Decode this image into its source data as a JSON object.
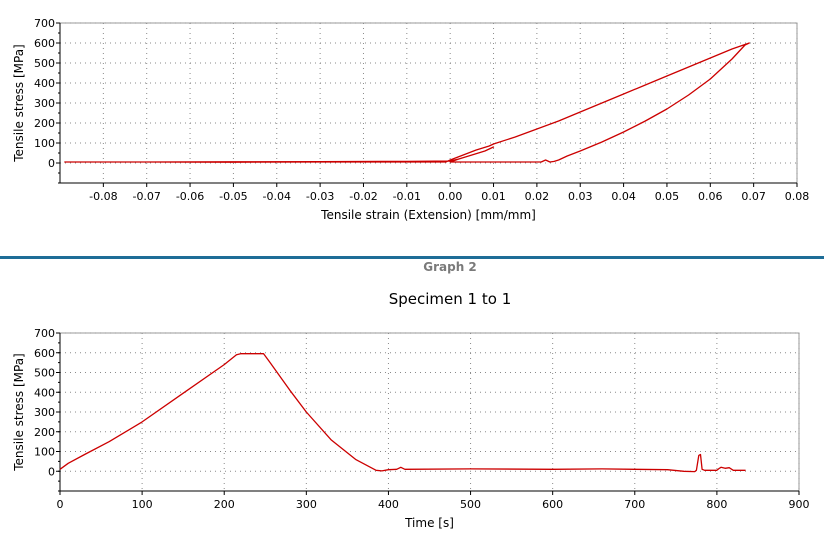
{
  "graph2": {
    "label": "Graph 2",
    "title": "Specimen 1 to 1"
  },
  "colors": {
    "series": "#cc0000",
    "divider": "#1e6d97",
    "grid": "#8a8a8a"
  },
  "chart_data": [
    {
      "type": "line",
      "title": "",
      "xlabel": "Tensile strain (Extension) [mm/mm]",
      "ylabel": "Tensile stress [MPa]",
      "xlim": [
        -0.09,
        0.08
      ],
      "ylim": [
        -100,
        700
      ],
      "xticks": [
        -0.08,
        -0.07,
        -0.06,
        -0.05,
        -0.04,
        -0.03,
        -0.02,
        -0.01,
        0.0,
        0.01,
        0.02,
        0.03,
        0.04,
        0.05,
        0.06,
        0.07,
        0.08
      ],
      "xtick_labels": [
        "-0.08",
        "-0.07",
        "-0.06",
        "-0.05",
        "-0.04",
        "-0.03",
        "-0.02",
        "-0.01",
        "0.00",
        "0.01",
        "0.02",
        "0.03",
        "0.04",
        "0.05",
        "0.06",
        "0.07",
        "0.08"
      ],
      "yticks": [
        0,
        100,
        200,
        300,
        400,
        500,
        600,
        700
      ],
      "ytick_labels": [
        "0",
        "100",
        "200",
        "300",
        "400",
        "500",
        "600",
        "700"
      ],
      "grid": true,
      "series": [
        {
          "x": [
            -0.089,
            -0.07,
            -0.05,
            -0.03,
            -0.01,
            -0.001,
            0.0,
            0.003,
            0.006,
            0.009,
            0.01,
            0.015,
            0.02,
            0.025,
            0.03,
            0.035,
            0.04,
            0.045,
            0.05,
            0.055,
            0.06,
            0.065,
            0.069,
            0.068,
            0.065,
            0.06,
            0.055,
            0.05,
            0.045,
            0.04,
            0.035,
            0.03,
            0.027,
            0.025,
            0.024,
            0.023,
            0.022,
            0.021,
            0.02,
            0.015,
            0.01,
            0.005,
            0.002,
            0.0,
            0.002,
            0.005,
            0.008,
            0.01,
            0.008,
            0.005,
            0.002,
            0.0,
            -0.01,
            -0.03,
            -0.05,
            -0.07,
            -0.089
          ],
          "y": [
            5,
            5,
            4,
            5,
            5,
            5,
            15,
            40,
            65,
            85,
            95,
            130,
            170,
            210,
            255,
            300,
            345,
            390,
            435,
            480,
            525,
            570,
            600,
            590,
            520,
            420,
            340,
            270,
            210,
            155,
            105,
            60,
            35,
            15,
            8,
            5,
            15,
            5,
            5,
            5,
            5,
            5,
            5,
            5,
            20,
            40,
            60,
            80,
            60,
            40,
            20,
            10,
            8,
            7,
            6,
            5,
            5
          ]
        }
      ]
    },
    {
      "type": "line",
      "title": "Specimen 1 to 1",
      "xlabel": "Time [s]",
      "ylabel": "Tensile stress [MPa]",
      "xlim": [
        0,
        900
      ],
      "ylim": [
        -100,
        700
      ],
      "xticks": [
        0,
        100,
        200,
        300,
        400,
        500,
        600,
        700,
        800,
        900
      ],
      "xtick_labels": [
        "0",
        "100",
        "200",
        "300",
        "400",
        "500",
        "600",
        "700",
        "800",
        "900"
      ],
      "yticks": [
        0,
        100,
        200,
        300,
        400,
        500,
        600,
        700
      ],
      "ytick_labels": [
        "0",
        "100",
        "200",
        "300",
        "400",
        "500",
        "600",
        "700"
      ],
      "grid": true,
      "series": [
        {
          "x": [
            0,
            10,
            30,
            60,
            100,
            150,
            200,
            215,
            220,
            248,
            255,
            280,
            300,
            330,
            360,
            385,
            392,
            400,
            410,
            415,
            420,
            500,
            600,
            660,
            700,
            740,
            760,
            773,
            775,
            778,
            780,
            782,
            785,
            800,
            803,
            805,
            810,
            815,
            820,
            825,
            830,
            835
          ],
          "y": [
            10,
            40,
            85,
            150,
            250,
            395,
            540,
            590,
            595,
            595,
            555,
            410,
            300,
            160,
            60,
            5,
            2,
            8,
            10,
            20,
            10,
            12,
            10,
            12,
            10,
            8,
            0,
            -2,
            5,
            80,
            85,
            10,
            5,
            5,
            15,
            20,
            15,
            18,
            5,
            5,
            5,
            5
          ]
        }
      ]
    }
  ]
}
